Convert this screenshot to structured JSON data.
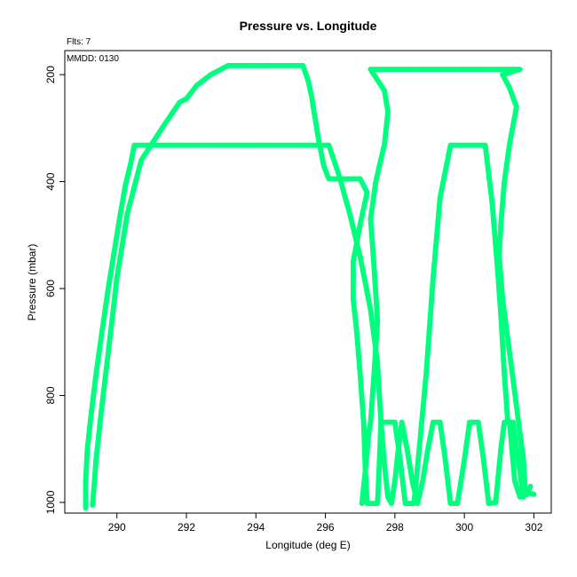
{
  "chart_data": {
    "type": "scatter",
    "title": "Pressure vs. Longitude",
    "xlabel": "Longitude (deg E)",
    "ylabel": "Pressure (mbar)",
    "annotations": [
      "Flts: 7",
      "MMDD: 0130"
    ],
    "xlim": [
      288.5,
      302.5
    ],
    "ylim": [
      1020,
      155
    ],
    "y_inverted": true,
    "x_ticks": [
      290,
      292,
      294,
      296,
      298,
      300,
      302
    ],
    "y_ticks": [
      200,
      400,
      600,
      800,
      1000
    ],
    "grid": false,
    "color": "#00FF7F",
    "series": [
      {
        "points": [
          [
            289.1,
            1010
          ],
          [
            289.1,
            960
          ],
          [
            289.15,
            900
          ],
          [
            289.25,
            840
          ],
          [
            289.4,
            760
          ],
          [
            289.55,
            690
          ],
          [
            289.75,
            600
          ],
          [
            289.95,
            520
          ],
          [
            290.1,
            460
          ],
          [
            290.25,
            405
          ],
          [
            290.4,
            365
          ],
          [
            290.5,
            332
          ],
          [
            291.5,
            332
          ],
          [
            292.5,
            332
          ],
          [
            293.5,
            332
          ],
          [
            294.5,
            332
          ],
          [
            295.5,
            332
          ],
          [
            296.1,
            332
          ],
          [
            296.4,
            390
          ],
          [
            296.7,
            460
          ],
          [
            297.0,
            540
          ],
          [
            297.3,
            640
          ],
          [
            297.5,
            740
          ],
          [
            297.6,
            850
          ],
          [
            297.7,
            930
          ],
          [
            297.8,
            990
          ],
          [
            297.9,
            1002
          ],
          [
            298.0,
            960
          ],
          [
            298.1,
            900
          ],
          [
            298.2,
            850
          ],
          [
            298.35,
            900
          ],
          [
            298.5,
            960
          ],
          [
            298.65,
            1002
          ],
          [
            298.8,
            960
          ],
          [
            298.95,
            900
          ],
          [
            299.1,
            850
          ],
          [
            299.3,
            850
          ],
          [
            299.45,
            920
          ],
          [
            299.6,
            1002
          ],
          [
            299.8,
            1002
          ],
          [
            300.0,
            920
          ],
          [
            300.15,
            850
          ],
          [
            300.4,
            850
          ],
          [
            300.55,
            920
          ],
          [
            300.7,
            1002
          ],
          [
            300.9,
            1000
          ],
          [
            301.05,
            900
          ],
          [
            301.15,
            850
          ],
          [
            301.3,
            850
          ],
          [
            301.45,
            960
          ],
          [
            301.6,
            990
          ],
          [
            301.8,
            985
          ],
          [
            301.9,
            970
          ]
        ]
      },
      {
        "points": [
          [
            289.3,
            1005
          ],
          [
            289.4,
            920
          ],
          [
            289.55,
            830
          ],
          [
            289.75,
            720
          ],
          [
            290.0,
            580
          ],
          [
            290.3,
            460
          ],
          [
            290.7,
            360
          ],
          [
            291.3,
            300
          ],
          [
            291.8,
            252
          ],
          [
            292.0,
            245
          ],
          [
            292.3,
            220
          ],
          [
            292.7,
            200
          ],
          [
            293.2,
            183
          ],
          [
            294.0,
            183
          ],
          [
            295.0,
            183
          ],
          [
            295.35,
            183
          ],
          [
            295.5,
            210
          ],
          [
            295.6,
            240
          ],
          [
            295.7,
            280
          ],
          [
            295.8,
            320
          ],
          [
            295.95,
            370
          ],
          [
            296.1,
            395
          ],
          [
            297.0,
            395
          ],
          [
            297.2,
            420
          ],
          [
            297.0,
            480
          ],
          [
            296.8,
            550
          ],
          [
            296.8,
            620
          ],
          [
            296.9,
            680
          ],
          [
            297.0,
            760
          ],
          [
            297.1,
            850
          ],
          [
            297.15,
            940
          ],
          [
            297.2,
            1002
          ],
          [
            297.5,
            1002
          ],
          [
            297.55,
            930
          ],
          [
            297.6,
            850
          ],
          [
            298.0,
            850
          ],
          [
            298.15,
            920
          ],
          [
            298.3,
            1002
          ],
          [
            298.55,
            1002
          ],
          [
            298.7,
            900
          ],
          [
            298.9,
            760
          ],
          [
            299.1,
            580
          ],
          [
            299.3,
            430
          ],
          [
            299.6,
            332
          ],
          [
            300.0,
            332
          ],
          [
            300.4,
            332
          ],
          [
            300.6,
            332
          ],
          [
            300.8,
            440
          ],
          [
            300.95,
            560
          ],
          [
            301.05,
            650
          ],
          [
            301.15,
            760
          ],
          [
            301.25,
            850
          ],
          [
            301.4,
            850
          ],
          [
            301.55,
            920
          ],
          [
            301.7,
            990
          ]
        ]
      },
      {
        "points": [
          [
            297.05,
            1002
          ],
          [
            297.15,
            940
          ],
          [
            297.25,
            870
          ],
          [
            297.3,
            850
          ],
          [
            297.4,
            760
          ],
          [
            297.5,
            660
          ],
          [
            297.4,
            560
          ],
          [
            297.3,
            470
          ],
          [
            297.45,
            400
          ],
          [
            297.7,
            330
          ],
          [
            297.8,
            270
          ],
          [
            297.7,
            230
          ],
          [
            297.5,
            210
          ],
          [
            297.3,
            190
          ],
          [
            298.5,
            190
          ],
          [
            299.5,
            190
          ],
          [
            300.5,
            190
          ],
          [
            301.2,
            190
          ],
          [
            301.6,
            190
          ],
          [
            301.1,
            200
          ],
          [
            301.3,
            225
          ],
          [
            301.5,
            260
          ],
          [
            301.3,
            330
          ],
          [
            301.15,
            400
          ],
          [
            301.05,
            480
          ],
          [
            301.0,
            540
          ],
          [
            301.1,
            620
          ],
          [
            301.3,
            720
          ],
          [
            301.5,
            820
          ],
          [
            301.7,
            920
          ],
          [
            301.75,
            980
          ],
          [
            302.0,
            985
          ]
        ]
      }
    ]
  }
}
